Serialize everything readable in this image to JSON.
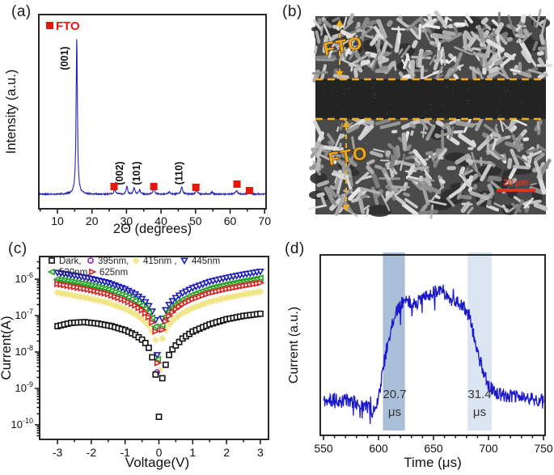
{
  "panels": {
    "a": {
      "label": "(a)"
    },
    "b": {
      "label": "(b)",
      "type": "sem-image",
      "region_labels": [
        {
          "text": "FTO"
        },
        {
          "text": "FTO"
        }
      ],
      "scale_bar": {
        "text": "20 μm",
        "color": "#e0321e"
      },
      "annotation_color": "#eeae1e",
      "background_color": "#4a4a4a",
      "channel_color": "#232323"
    },
    "c": {
      "label": "(c)"
    },
    "d": {
      "label": "(d)"
    }
  },
  "chart_data": [
    {
      "id": "xrd",
      "type": "line",
      "xlabel": "2Θ (degrees)",
      "ylabel": "Intensity (a.u.)",
      "xlim": [
        4.7,
        70.5
      ],
      "x_ticks": [
        10,
        20,
        30,
        40,
        50,
        60,
        70
      ],
      "grid": false,
      "line_color": "#2323b8",
      "legend": {
        "label": "FTO",
        "color": "#e8160c",
        "position": "top-left"
      },
      "peaks": [
        {
          "two_theta": 15.6,
          "rel_intensity": 1.0,
          "width": 0.22,
          "label": "(001)"
        },
        {
          "two_theta": 26.6,
          "rel_intensity": 0.03,
          "width": 0.3,
          "phase": "FTO"
        },
        {
          "two_theta": 30.1,
          "rel_intensity": 0.05,
          "width": 0.25,
          "label": "(002)"
        },
        {
          "two_theta": 32.2,
          "rel_intensity": 0.042,
          "width": 0.25,
          "label": "(101)"
        },
        {
          "two_theta": 33.8,
          "rel_intensity": 0.026,
          "width": 0.25,
          "phase": "FTO"
        },
        {
          "two_theta": 37.9,
          "rel_intensity": 0.036,
          "width": 0.3,
          "phase": "FTO"
        },
        {
          "two_theta": 42.4,
          "rel_intensity": 0.014,
          "width": 0.3
        },
        {
          "two_theta": 46.0,
          "rel_intensity": 0.05,
          "width": 0.28,
          "label": "(110)"
        },
        {
          "two_theta": 50.3,
          "rel_intensity": 0.03,
          "width": 0.3,
          "phase": "FTO"
        },
        {
          "two_theta": 54.8,
          "rel_intensity": 0.012,
          "width": 0.3
        },
        {
          "two_theta": 61.8,
          "rel_intensity": 0.022,
          "width": 0.35,
          "phase": "FTO"
        },
        {
          "two_theta": 65.6,
          "rel_intensity": 0.018,
          "width": 0.35,
          "phase": "FTO"
        }
      ],
      "fto_marker_positions": [
        {
          "two_theta": 26.4,
          "dy": 0
        },
        {
          "two_theta": 37.9,
          "dy": 0
        },
        {
          "two_theta": 50.1,
          "dy": 1
        },
        {
          "two_theta": 62.0,
          "dy": -3
        },
        {
          "two_theta": 65.6,
          "dy": 5
        }
      ]
    },
    {
      "id": "iv",
      "type": "scatter",
      "xlabel": "Voltage(V)",
      "ylabel": "Current(A)",
      "xlim": [
        -3.5,
        3.5
      ],
      "x_ticks": [
        -3,
        -2,
        -1,
        0,
        1,
        2,
        3
      ],
      "ylog_ticks": [
        -6,
        -7,
        -8,
        -9,
        -10
      ],
      "ylim_log": [
        -10.35,
        -5.45
      ],
      "marker_step": 0.1,
      "legend_rows": [
        [
          0,
          1,
          2,
          3
        ],
        [
          4,
          5
        ]
      ],
      "base_anchors": [
        [
          -3,
          -5.82
        ],
        [
          -2.5,
          -5.9
        ],
        [
          -2,
          -5.99
        ],
        [
          -1.5,
          -6.1
        ],
        [
          -1,
          -6.27
        ],
        [
          -0.7,
          -6.41
        ],
        [
          -0.5,
          -6.54
        ],
        [
          -0.35,
          -6.67
        ],
        [
          -0.25,
          -6.79
        ],
        [
          -0.15,
          -6.97
        ],
        [
          -0.1,
          -7.12
        ],
        [
          0.1,
          -7.08
        ],
        [
          0.15,
          -6.93
        ],
        [
          0.25,
          -6.76
        ],
        [
          0.35,
          -6.64
        ],
        [
          0.5,
          -6.51
        ],
        [
          0.7,
          -6.38
        ],
        [
          1,
          -6.24
        ],
        [
          1.5,
          -6.07
        ],
        [
          2,
          -5.96
        ],
        [
          2.5,
          -5.87
        ],
        [
          3,
          -5.79
        ]
      ],
      "series": [
        {
          "name": "Dark,",
          "marker": "square",
          "color": "#111111",
          "anchors": [
            [
              -3,
              -7.29
            ],
            [
              -2.6,
              -7.2
            ],
            [
              -2.2,
              -7.18
            ],
            [
              -1.8,
              -7.22
            ],
            [
              -1.4,
              -7.29
            ],
            [
              -1,
              -7.4
            ],
            [
              -0.7,
              -7.53
            ],
            [
              -0.5,
              -7.66
            ],
            [
              -0.35,
              -7.8
            ],
            [
              -0.25,
              -7.97
            ],
            [
              -0.15,
              -8.32
            ],
            [
              -0.1,
              -8.62
            ],
            [
              0.1,
              -8.72
            ],
            [
              0.15,
              -8.52
            ],
            [
              0.25,
              -8.18
            ],
            [
              0.35,
              -7.98
            ],
            [
              0.5,
              -7.82
            ],
            [
              0.7,
              -7.63
            ],
            [
              1,
              -7.44
            ],
            [
              1.5,
              -7.24
            ],
            [
              2,
              -7.1
            ],
            [
              2.5,
              -7.01
            ],
            [
              3,
              -6.95
            ]
          ],
          "extra_points": [
            [
              0,
              -9.78
            ]
          ]
        },
        {
          "name": "395nm,",
          "marker": "circle",
          "color": "#8426c9",
          "log_offset": -0.22,
          "extra_points": [
            [
              -0.06,
              -8.56
            ]
          ]
        },
        {
          "name": "415nm ,",
          "marker": "diamond-filled",
          "color": "#efe27a",
          "log_offset": -0.55,
          "extra_points": [
            [
              0.02,
              -8.5
            ]
          ]
        },
        {
          "name": "445nm",
          "marker": "triangle-down",
          "color": "#1c1cb8",
          "log_offset": 0.0,
          "extra_points": [
            [
              -0.05,
              -8.08
            ]
          ]
        },
        {
          "name": "520nm,",
          "marker": "triangle-left",
          "color": "#1fa11f",
          "log_offset": -0.18,
          "extra_points": [
            [
              -0.03,
              -8.2
            ]
          ]
        },
        {
          "name": "625nm",
          "marker": "triangle-right",
          "color": "#d62020",
          "log_offset": -0.31,
          "extra_points": [
            [
              -0.04,
              -8.3
            ]
          ]
        }
      ],
      "draw_order": [
        2,
        1,
        3,
        4,
        5,
        0
      ]
    },
    {
      "id": "transient",
      "type": "line",
      "xlabel": "Time (μs)",
      "ylabel": "Current (a.u.)",
      "xlim": [
        550,
        750
      ],
      "x_ticks": [
        550,
        600,
        650,
        700,
        750
      ],
      "minor_tick_step": 10,
      "line_color": "#1a18c8",
      "noise_amplitude": 0.04,
      "waveform_anchors": [
        [
          550,
          0.2
        ],
        [
          560,
          0.19
        ],
        [
          570,
          0.2
        ],
        [
          580,
          0.19
        ],
        [
          590,
          0.16
        ],
        [
          595,
          0.13
        ],
        [
          598,
          0.17
        ],
        [
          600,
          0.22
        ],
        [
          604,
          0.38
        ],
        [
          608,
          0.52
        ],
        [
          613,
          0.68
        ],
        [
          618,
          0.76
        ],
        [
          622,
          0.8
        ],
        [
          632,
          0.78
        ],
        [
          642,
          0.82
        ],
        [
          652,
          0.86
        ],
        [
          657,
          0.88
        ],
        [
          663,
          0.82
        ],
        [
          670,
          0.8
        ],
        [
          678,
          0.76
        ],
        [
          683,
          0.7
        ],
        [
          688,
          0.55
        ],
        [
          694,
          0.4
        ],
        [
          700,
          0.3
        ],
        [
          705,
          0.25
        ],
        [
          715,
          0.23
        ],
        [
          730,
          0.22
        ],
        [
          750,
          0.2
        ]
      ],
      "bands": [
        {
          "x0": 604,
          "x1": 624,
          "color": "#a9bfd8",
          "value": "20.7",
          "unit": "μs"
        },
        {
          "x0": 681,
          "x1": 703,
          "color": "#dbe5f1",
          "value": "31.4",
          "unit": "μs"
        }
      ]
    }
  ]
}
